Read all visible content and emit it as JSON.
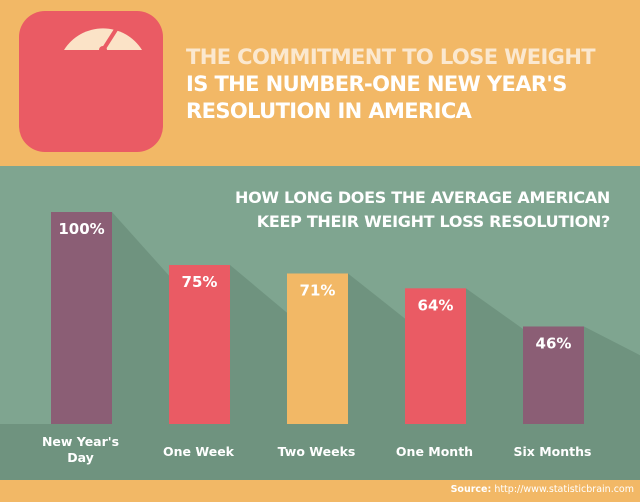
{
  "header": {
    "title_line1": "THE COMMITMENT TO LOSE WEIGHT",
    "title_line2": "IS THE NUMBER-ONE NEW YEAR'S",
    "title_line3": "RESOLUTION IN AMERICA",
    "icon": "bathroom-scale-icon"
  },
  "colors": {
    "background": "#7fa590",
    "shadow": "#6f937f",
    "banner": "#f2b866",
    "scale": "#ea5b64",
    "bar_purple": "#8b5e75",
    "bar_red": "#ea5b64",
    "bar_orange": "#f2b866"
  },
  "chart_data": {
    "type": "bar",
    "title": "HOW LONG DOES THE AVERAGE AMERICAN KEEP THEIR WEIGHT LOSS RESOLUTION?",
    "title_lines": [
      "HOW LONG DOES THE AVERAGE AMERICAN",
      "KEEP THEIR WEIGHT LOSS RESOLUTION?"
    ],
    "categories": [
      "New Year's Day",
      "One Week",
      "Two Weeks",
      "One Month",
      "Six Months"
    ],
    "category_lines": [
      [
        "New Year's",
        "Day"
      ],
      [
        "One Week"
      ],
      [
        "Two Weeks"
      ],
      [
        "One Month"
      ],
      [
        "Six Months"
      ]
    ],
    "values": [
      100,
      75,
      71,
      64,
      46
    ],
    "value_labels": [
      "100%",
      "75%",
      "71%",
      "64%",
      "46%"
    ],
    "bar_colors": [
      "#8b5e75",
      "#ea5b64",
      "#f2b866",
      "#ea5b64",
      "#8b5e75"
    ],
    "unit": "%",
    "ylim": [
      0,
      100
    ],
    "xlabel": "",
    "ylabel": "",
    "grid": false,
    "legend": "none"
  },
  "source": {
    "label": "Source:",
    "text": "http://www.statisticbrain.com"
  }
}
